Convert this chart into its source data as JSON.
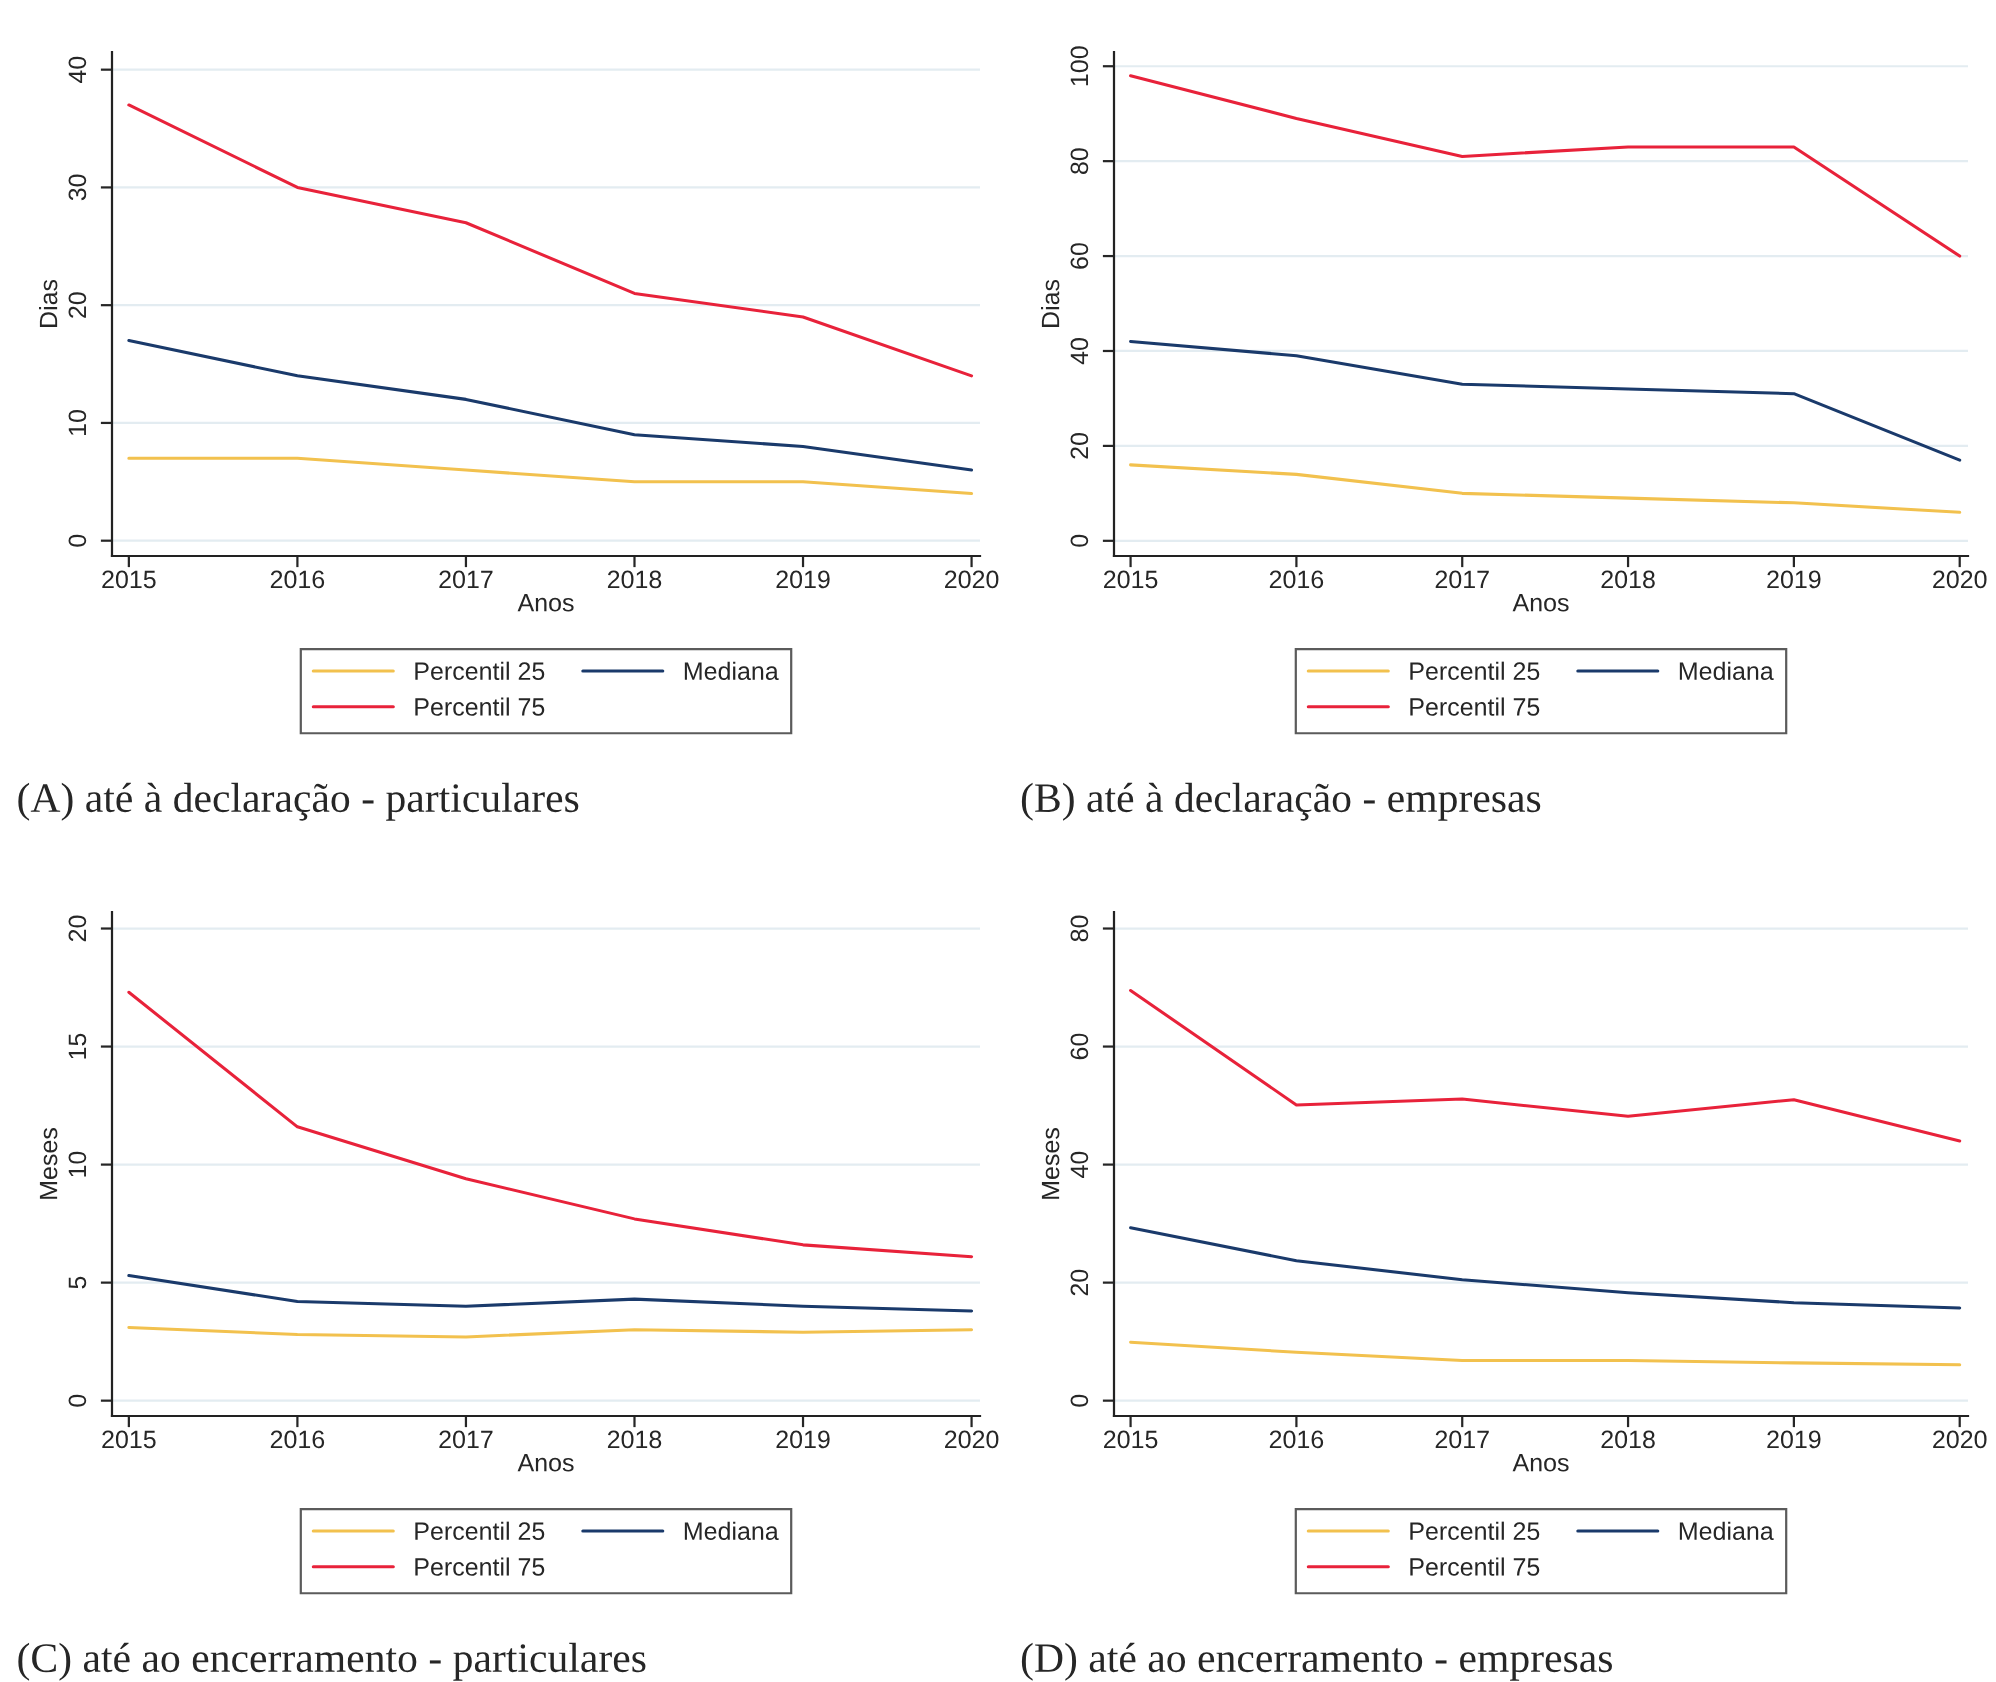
{
  "chart_data": [
    {
      "type": "line",
      "title": "(A) até à declaração - particulares",
      "xlabel": "Anos",
      "ylabel": "Dias",
      "x": [
        2015,
        2016,
        2017,
        2018,
        2019,
        2020
      ],
      "xlim": [
        2014.9,
        2020.05
      ],
      "ylim": [
        -1.3,
        41.5
      ],
      "xticks": [
        2015,
        2016,
        2017,
        2018,
        2019,
        2020
      ],
      "yticks": [
        0,
        10,
        20,
        30,
        40
      ],
      "grid": "y",
      "legend": "bottom",
      "series": [
        {
          "name": "Percentil 25",
          "color": "#f2c14e",
          "values": [
            7,
            7,
            6,
            5,
            5,
            4
          ]
        },
        {
          "name": "Mediana",
          "color": "#1a3a6b",
          "values": [
            17,
            14,
            12,
            9,
            8,
            6
          ]
        },
        {
          "name": "Percentil 75",
          "color": "#e8223a",
          "values": [
            37,
            30,
            27,
            21,
            19,
            14
          ]
        }
      ]
    },
    {
      "type": "line",
      "title": "(B) até à declaração - empresas",
      "xlabel": "Anos",
      "ylabel": "Dias",
      "x": [
        2015,
        2016,
        2017,
        2018,
        2019,
        2020
      ],
      "xlim": [
        2014.9,
        2020.05
      ],
      "ylim": [
        -3.2,
        103
      ],
      "xticks": [
        2015,
        2016,
        2017,
        2018,
        2019,
        2020
      ],
      "yticks": [
        0,
        20,
        40,
        60,
        80,
        100
      ],
      "grid": "y",
      "legend": "bottom",
      "series": [
        {
          "name": "Percentil 25",
          "color": "#f2c14e",
          "values": [
            16,
            14,
            10,
            9,
            8,
            6
          ]
        },
        {
          "name": "Mediana",
          "color": "#1a3a6b",
          "values": [
            42,
            39,
            33,
            32,
            31,
            17
          ]
        },
        {
          "name": "Percentil 75",
          "color": "#e8223a",
          "values": [
            98,
            89,
            81,
            83,
            83,
            60
          ]
        }
      ]
    },
    {
      "type": "line",
      "title": "(C) até ao encerramento - particulares",
      "xlabel": "Anos",
      "ylabel": "Meses",
      "x": [
        2015,
        2016,
        2017,
        2018,
        2019,
        2020
      ],
      "xlim": [
        2014.9,
        2020.05
      ],
      "ylim": [
        -0.65,
        20.7
      ],
      "xticks": [
        2015,
        2016,
        2017,
        2018,
        2019,
        2020
      ],
      "yticks": [
        0,
        5,
        10,
        15,
        20
      ],
      "grid": "y",
      "legend": "bottom",
      "series": [
        {
          "name": "Percentil 25",
          "color": "#f2c14e",
          "values": [
            3.1,
            2.8,
            2.7,
            3,
            2.9,
            3
          ]
        },
        {
          "name": "Mediana",
          "color": "#1a3a6b",
          "values": [
            5.3,
            4.2,
            4,
            4.3,
            4,
            3.8
          ]
        },
        {
          "name": "Percentil 75",
          "color": "#e8223a",
          "values": [
            17.3,
            11.6,
            9.4,
            7.7,
            6.6,
            6.1
          ]
        }
      ]
    },
    {
      "type": "line",
      "title": "(D) até ao encerramento - empresas",
      "xlabel": "Anos",
      "ylabel": "Meses",
      "x": [
        2015,
        2016,
        2017,
        2018,
        2019,
        2020
      ],
      "xlim": [
        2014.9,
        2020.05
      ],
      "ylim": [
        -2.6,
        82.8
      ],
      "xticks": [
        2015,
        2016,
        2017,
        2018,
        2019,
        2020
      ],
      "yticks": [
        0,
        20,
        40,
        60,
        80
      ],
      "grid": "y",
      "legend": "bottom",
      "series": [
        {
          "name": "Percentil 25",
          "color": "#f2c14e",
          "values": [
            9.9,
            8.2,
            6.8,
            6.8,
            6.4,
            6.1
          ]
        },
        {
          "name": "Mediana",
          "color": "#1a3a6b",
          "values": [
            29.3,
            23.7,
            20.5,
            18.3,
            16.6,
            15.7
          ]
        },
        {
          "name": "Percentil 75",
          "color": "#e8223a",
          "values": [
            69.5,
            50.1,
            51.1,
            48.2,
            51,
            44
          ]
        }
      ]
    }
  ]
}
